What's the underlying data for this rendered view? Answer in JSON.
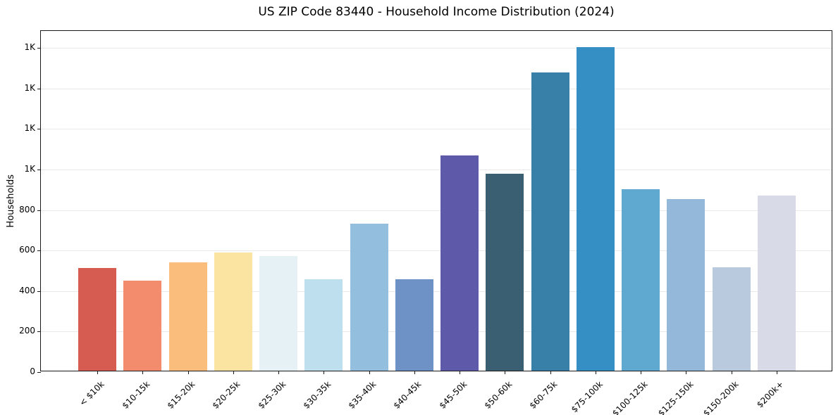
{
  "chart_data": {
    "type": "bar",
    "title": "US ZIP Code 83440 - Household Income Distribution (2024)",
    "xlabel": "",
    "ylabel": "Households",
    "categories": [
      "< $10k",
      "$10-15k",
      "$15-20k",
      "$20-25k",
      "$25-30k",
      "$30-35k",
      "$35-40k",
      "$40-45k",
      "$45-50k",
      "$50-60k",
      "$60-75k",
      "$75-100k",
      "$100-125k",
      "$125-150k",
      "$150-200k",
      "$200k+"
    ],
    "values": [
      508,
      445,
      536,
      584,
      566,
      452,
      726,
      452,
      1064,
      971,
      1471,
      1596,
      897,
      848,
      512,
      863
    ],
    "bar_colors": [
      "#d65c52",
      "#f38c6c",
      "#fbbd7c",
      "#fbe3a2",
      "#e6f1f5",
      "#bedfed",
      "#93bedd",
      "#6e92c5",
      "#5e59a8",
      "#3a5f72",
      "#3880a7",
      "#368fc4",
      "#5fa8cf",
      "#93b8da",
      "#b9c9de",
      "#d8dae7"
    ],
    "ylim": [
      0,
      1684
    ],
    "yticks": [
      {
        "value": 0,
        "label": "0"
      },
      {
        "value": 200,
        "label": "200"
      },
      {
        "value": 400,
        "label": "400"
      },
      {
        "value": 600,
        "label": "600"
      },
      {
        "value": 800,
        "label": "800"
      },
      {
        "value": 1000,
        "label": "1K"
      },
      {
        "value": 1200,
        "label": "1K"
      },
      {
        "value": 1400,
        "label": "1K"
      },
      {
        "value": 1600,
        "label": "1K"
      }
    ],
    "grid": "horizontal",
    "gridline_color": "#e9e9e9",
    "background": "#ffffff",
    "legend": "none"
  }
}
